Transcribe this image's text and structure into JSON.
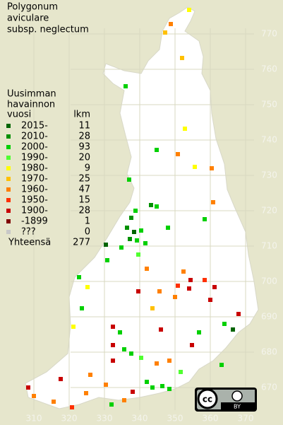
{
  "title": [
    "Polygonum",
    "aviculare",
    "subsp. neglectum"
  ],
  "legend": {
    "heading": [
      "Uusimman",
      "havainnon"
    ],
    "year_header": "vuosi",
    "count_header": "lkm",
    "rows": [
      {
        "label": "2015-",
        "count": 11,
        "color": "#006400"
      },
      {
        "label": "2010-",
        "count": 28,
        "color": "#009000"
      },
      {
        "label": "2000-",
        "count": 93,
        "color": "#00d000"
      },
      {
        "label": "1990-",
        "count": 20,
        "color": "#50ff30"
      },
      {
        "label": "1980-",
        "count": 9,
        "color": "#ffff00"
      },
      {
        "label": "1970-",
        "count": 25,
        "color": "#ffc000"
      },
      {
        "label": "1960-",
        "count": 47,
        "color": "#ff8000"
      },
      {
        "label": "1950-",
        "count": 15,
        "color": "#ff3000"
      },
      {
        "label": "1900-",
        "count": 28,
        "color": "#c80000"
      },
      {
        "label": "-1899",
        "count": 1,
        "color": "#800000"
      },
      {
        "label": "???",
        "count": 0,
        "color": "#c8c8c8"
      }
    ],
    "total_label": "Yhteensä",
    "total": 277
  },
  "grid": {
    "y_labels": [
      770,
      760,
      750,
      740,
      730,
      720,
      710,
      700,
      690,
      680,
      670
    ],
    "x_labels": [
      310,
      320,
      330,
      340,
      350,
      360,
      370
    ]
  },
  "license": {
    "icon": "cc",
    "attribution": "BY"
  }
}
